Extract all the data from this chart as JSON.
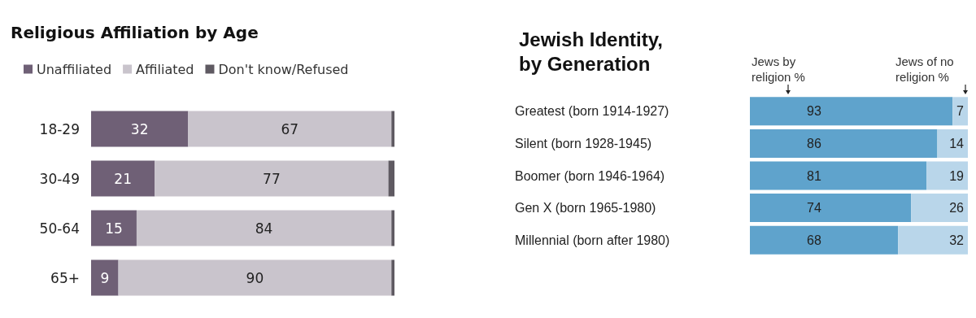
{
  "chart_data": [
    {
      "type": "bar",
      "title": "Religious Affiliation by Age",
      "orientation": "horizontal",
      "stacked": true,
      "legend": "top left",
      "categories": [
        "18-29",
        "30-49",
        "50-64",
        "65+"
      ],
      "series": [
        {
          "name": "Unaffiliated",
          "color": "#6f6076",
          "values": [
            32,
            21,
            15,
            9
          ],
          "value_labels": [
            "32",
            "21",
            "15",
            "9"
          ]
        },
        {
          "name": "Affiliated",
          "color": "#c9c4cc",
          "values": [
            67,
            77,
            84,
            90
          ],
          "value_labels": [
            "67",
            "77",
            "84",
            "90"
          ]
        },
        {
          "name": "Don't know/Refused",
          "color": "#5f5a62",
          "values": [
            1,
            2,
            1,
            1
          ],
          "value_labels": [
            null,
            null,
            null,
            null
          ]
        }
      ]
    },
    {
      "type": "bar",
      "title": "Jewish Identity, by Generation",
      "orientation": "horizontal",
      "stacked": true,
      "data_labels": true,
      "categories": [
        "Greatest (born 1914-1927)",
        "Silent (born 1928-1945)",
        "Boomer (born 1946-1964)",
        "Gen X (born 1965-1980)",
        "Millennial (born after 1980)"
      ],
      "series": [
        {
          "name": "Jews by religion %",
          "color": "#5fa3cc",
          "values": [
            93,
            86,
            81,
            74,
            68
          ]
        },
        {
          "name": "Jews of no religion %",
          "color": "#b9d6ea",
          "values": [
            7,
            14,
            19,
            26,
            32
          ]
        }
      ]
    }
  ]
}
